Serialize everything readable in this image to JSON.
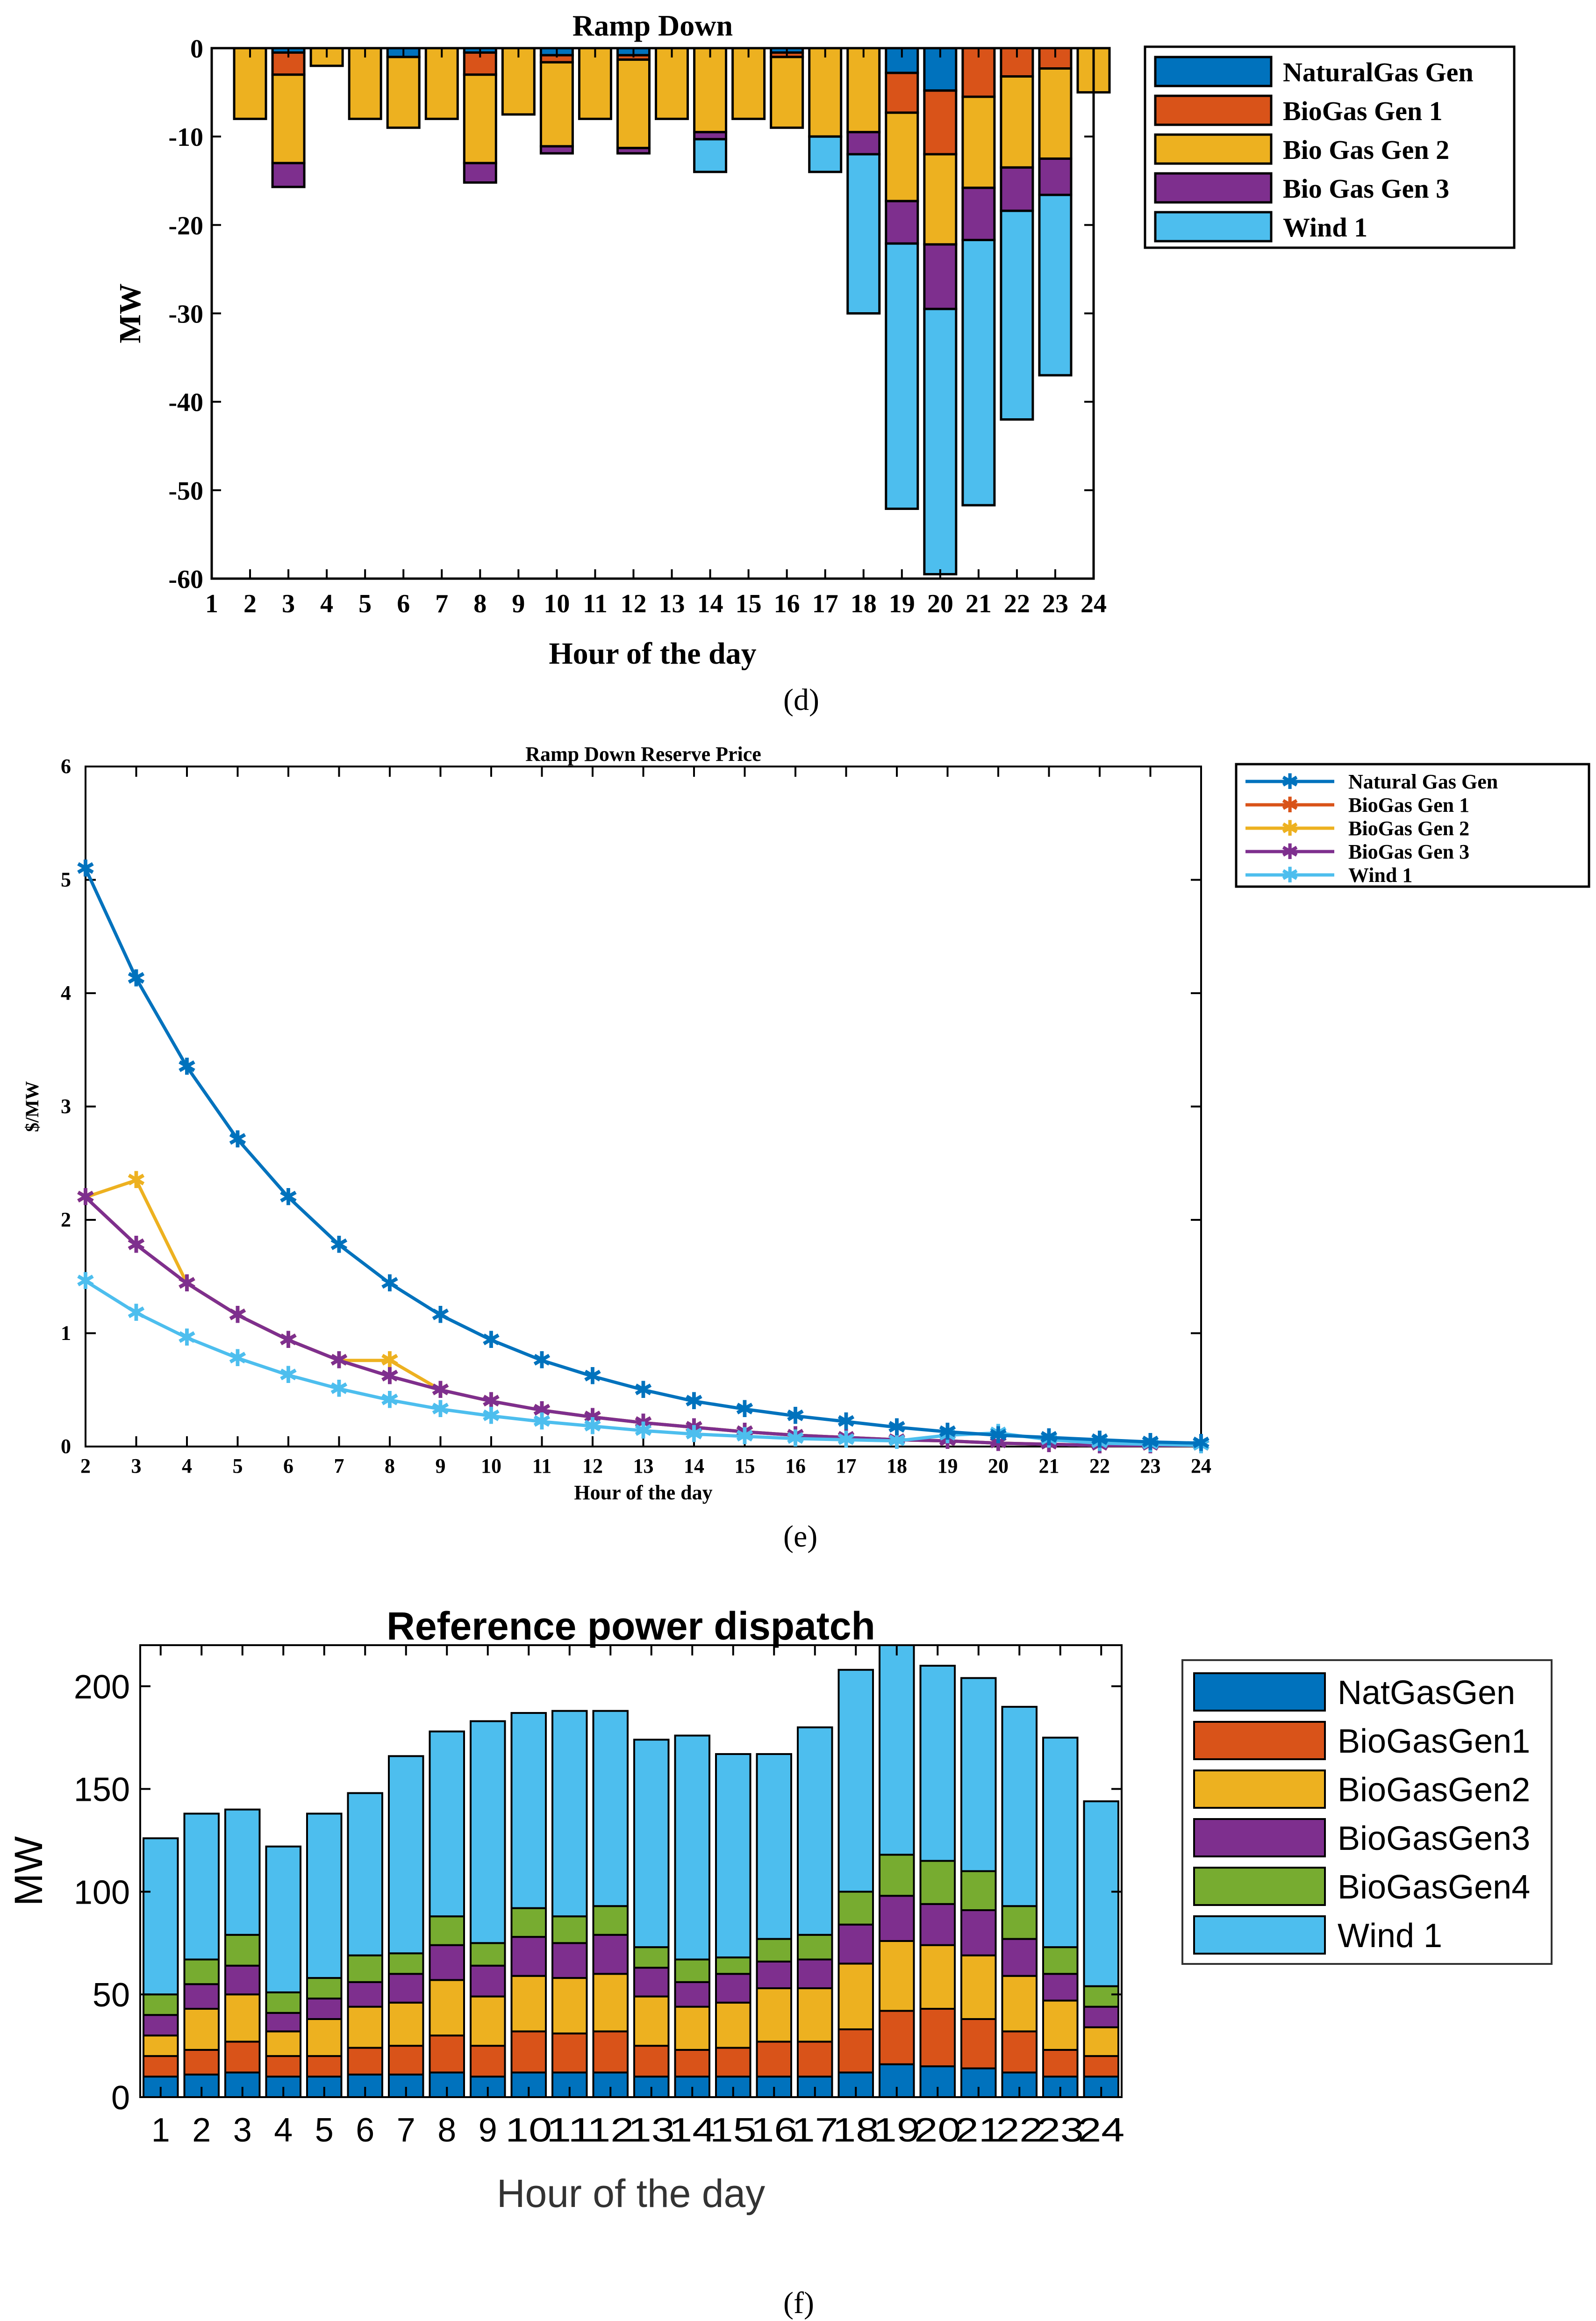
{
  "colors": {
    "natgas": "#0072BD",
    "biogas1": "#D95319",
    "biogas2": "#EDB120",
    "biogas3": "#7E2F8E",
    "biogas4": "#77AC30",
    "wind": "#4DBEEE"
  },
  "panels": {
    "d": "(d)",
    "e": "(e)",
    "f": "(f)"
  },
  "chart_data": [
    {
      "id": "d",
      "type": "bar",
      "stacked": true,
      "title": "Ramp Down",
      "xlabel": "Hour of the day",
      "ylabel": "MW",
      "xticks": [
        "1",
        "2",
        "3",
        "4",
        "5",
        "6",
        "7",
        "8",
        "9",
        "10",
        "11",
        "12",
        "13",
        "14",
        "15",
        "16",
        "17",
        "18",
        "19",
        "20",
        "21",
        "22",
        "23",
        "24"
      ],
      "yticks": [
        "0",
        "-10",
        "-20",
        "-30",
        "-40",
        "-50",
        "-60"
      ],
      "ylim": [
        -60,
        0
      ],
      "categories": [
        "2",
        "3",
        "4",
        "5",
        "6",
        "7",
        "8",
        "9",
        "10",
        "11",
        "12",
        "13",
        "14",
        "15",
        "16",
        "17",
        "18",
        "19",
        "20",
        "21",
        "22",
        "23",
        "24"
      ],
      "legend_position": "outside-top-right",
      "series": [
        {
          "name": "NaturalGas Gen",
          "color_key": "natgas",
          "values": [
            0,
            -0.5,
            0,
            0,
            -1,
            0,
            -0.5,
            0,
            -0.8,
            0,
            -0.8,
            0,
            0,
            0,
            -0.5,
            0,
            0,
            -2.8,
            -4.8,
            0,
            0,
            0,
            0
          ]
        },
        {
          "name": "BioGas Gen 1",
          "color_key": "biogas1",
          "values": [
            0,
            -2.5,
            0,
            0,
            0,
            0,
            -2.5,
            0,
            -0.8,
            0,
            -0.5,
            0,
            0,
            0,
            -0.5,
            0,
            0,
            -4.5,
            -7.2,
            -5.5,
            -3.2,
            -2.3,
            0
          ]
        },
        {
          "name": "Bio Gas Gen  2",
          "color_key": "biogas2",
          "values": [
            -8,
            -10,
            -2,
            -8,
            -8,
            -8,
            -10,
            -7.5,
            -9.5,
            -8,
            -10,
            -8,
            -9.5,
            -8,
            -8,
            -10,
            -9.5,
            -10,
            -10.2,
            -10.3,
            -10.3,
            -10.2,
            -5
          ]
        },
        {
          "name": "Bio Gas Gen 3",
          "color_key": "biogas3",
          "values": [
            0,
            -2.7,
            0,
            0,
            0,
            0,
            -2.2,
            0,
            -0.8,
            0,
            -0.6,
            0,
            -0.8,
            0,
            0,
            0,
            -2.5,
            -4.8,
            -7.3,
            -5.9,
            -4.9,
            -4.1,
            0
          ]
        },
        {
          "name": "Wind 1",
          "color_key": "wind",
          "values": [
            0,
            0,
            0,
            0,
            0,
            0,
            0,
            0,
            0,
            0,
            0,
            0,
            -3.7,
            0,
            0,
            -4,
            -18,
            -30,
            -30,
            -30,
            -23.6,
            -20.4,
            0
          ]
        }
      ]
    },
    {
      "id": "e",
      "type": "line",
      "title": "Ramp Down Reserve Price",
      "xlabel": "Hour of the day",
      "ylabel": "$/MW",
      "x": [
        2,
        3,
        4,
        5,
        6,
        7,
        8,
        9,
        10,
        11,
        12,
        13,
        14,
        15,
        16,
        17,
        18,
        19,
        20,
        21,
        22,
        23,
        24
      ],
      "xticks": [
        "2",
        "3",
        "4",
        "5",
        "6",
        "7",
        "8",
        "9",
        "10",
        "11",
        "12",
        "13",
        "14",
        "15",
        "16",
        "17",
        "18",
        "19",
        "20",
        "21",
        "22",
        "23",
        "24"
      ],
      "yticks": [
        "0",
        "1",
        "2",
        "3",
        "4",
        "5",
        "6"
      ],
      "xlim": [
        2,
        24
      ],
      "ylim": [
        0,
        6
      ],
      "legend_position": "outside-top-right",
      "series": [
        {
          "name": "Natural Gas Gen",
          "color_key": "natgas",
          "values": [
            5.1,
            4.13,
            3.35,
            2.71,
            2.2,
            1.78,
            1.44,
            1.16,
            0.94,
            0.76,
            0.62,
            0.5,
            0.4,
            0.33,
            0.27,
            0.22,
            0.17,
            0.13,
            0.1,
            0.08,
            0.06,
            0.04,
            0.03
          ]
        },
        {
          "name": "BioGas Gen 1",
          "color_key": "biogas1",
          "values": [
            2.2,
            1.78,
            1.44,
            1.16,
            0.94,
            0.76,
            0.62,
            0.5,
            0.4,
            0.32,
            0.26,
            0.21,
            0.17,
            0.13,
            0.1,
            0.08,
            0.06,
            0.05,
            0.03,
            0.02,
            0.01,
            0.01,
            0.01
          ]
        },
        {
          "name": "BioGas Gen 2",
          "color_key": "biogas2",
          "values": [
            2.2,
            2.35,
            1.44,
            1.16,
            0.94,
            0.76,
            0.76,
            0.5,
            0.4,
            0.32,
            0.26,
            0.21,
            0.17,
            0.13,
            0.1,
            0.08,
            0.06,
            0.05,
            0.03,
            0.02,
            0.01,
            0.01,
            0.01
          ]
        },
        {
          "name": "BioGas Gen 3",
          "color_key": "biogas3",
          "values": [
            2.2,
            1.78,
            1.44,
            1.16,
            0.94,
            0.76,
            0.62,
            0.5,
            0.4,
            0.32,
            0.26,
            0.21,
            0.17,
            0.13,
            0.1,
            0.08,
            0.06,
            0.05,
            0.03,
            0.02,
            0.01,
            0.01,
            0.01
          ]
        },
        {
          "name": "Wind 1",
          "color_key": "wind",
          "values": [
            1.46,
            1.18,
            0.96,
            0.78,
            0.63,
            0.51,
            0.41,
            0.33,
            0.27,
            0.22,
            0.18,
            0.14,
            0.11,
            0.09,
            0.07,
            0.06,
            0.05,
            0.1,
            0.12,
            0.06,
            0.03,
            0.02,
            0.01
          ]
        }
      ]
    },
    {
      "id": "f",
      "type": "bar",
      "stacked": true,
      "title": "Reference power dispatch",
      "xlabel": "Hour of the day",
      "ylabel": "MW",
      "xticks": [
        "1",
        "2",
        "3",
        "4",
        "5",
        "6",
        "7",
        "8",
        "9",
        "10",
        "11",
        "12",
        "13",
        "14",
        "15",
        "16",
        "17",
        "18",
        "19",
        "20",
        "21",
        "22",
        "23",
        "24"
      ],
      "yticks": [
        "0",
        "50",
        "100",
        "150",
        "200"
      ],
      "ylim": [
        0,
        220
      ],
      "categories": [
        "1",
        "2",
        "3",
        "4",
        "5",
        "6",
        "7",
        "8",
        "9",
        "10",
        "11",
        "12",
        "13",
        "14",
        "15",
        "16",
        "17",
        "18",
        "19",
        "20",
        "21",
        "22",
        "23",
        "24"
      ],
      "legend_position": "outside-top-right",
      "series": [
        {
          "name": "NatGasGen",
          "color_key": "natgas",
          "values": [
            10,
            11,
            12,
            10,
            10,
            11,
            11,
            12,
            10,
            12,
            12,
            12,
            10,
            10,
            10,
            10,
            10,
            12,
            16,
            15,
            14,
            12,
            10,
            10
          ]
        },
        {
          "name": "BioGasGen1",
          "color_key": "biogas1",
          "values": [
            10,
            12,
            15,
            10,
            10,
            13,
            14,
            18,
            15,
            20,
            19,
            20,
            15,
            13,
            14,
            17,
            17,
            21,
            26,
            28,
            24,
            20,
            13,
            10
          ]
        },
        {
          "name": "BioGasGen2",
          "color_key": "biogas2",
          "values": [
            10,
            20,
            23,
            12,
            18,
            20,
            21,
            27,
            24,
            27,
            27,
            28,
            24,
            21,
            22,
            26,
            26,
            32,
            34,
            31,
            31,
            27,
            24,
            14
          ]
        },
        {
          "name": "BioGasGen3",
          "color_key": "biogas3",
          "values": [
            10,
            12,
            14,
            9,
            10,
            12,
            14,
            17,
            15,
            19,
            17,
            19,
            14,
            12,
            14,
            13,
            14,
            19,
            22,
            20,
            22,
            18,
            13,
            10
          ]
        },
        {
          "name": "BioGasGen4",
          "color_key": "biogas4",
          "values": [
            10,
            12,
            15,
            10,
            10,
            13,
            10,
            14,
            11,
            14,
            13,
            14,
            10,
            11,
            8,
            11,
            12,
            16,
            20,
            21,
            19,
            16,
            13,
            10
          ]
        },
        {
          "name": "Wind 1",
          "color_key": "wind",
          "values": [
            76,
            71,
            61,
            71,
            80,
            79,
            96,
            90,
            108,
            95,
            100,
            95,
            101,
            109,
            99,
            90,
            101,
            108,
            102,
            95,
            94,
            97,
            102,
            90
          ]
        }
      ]
    }
  ]
}
